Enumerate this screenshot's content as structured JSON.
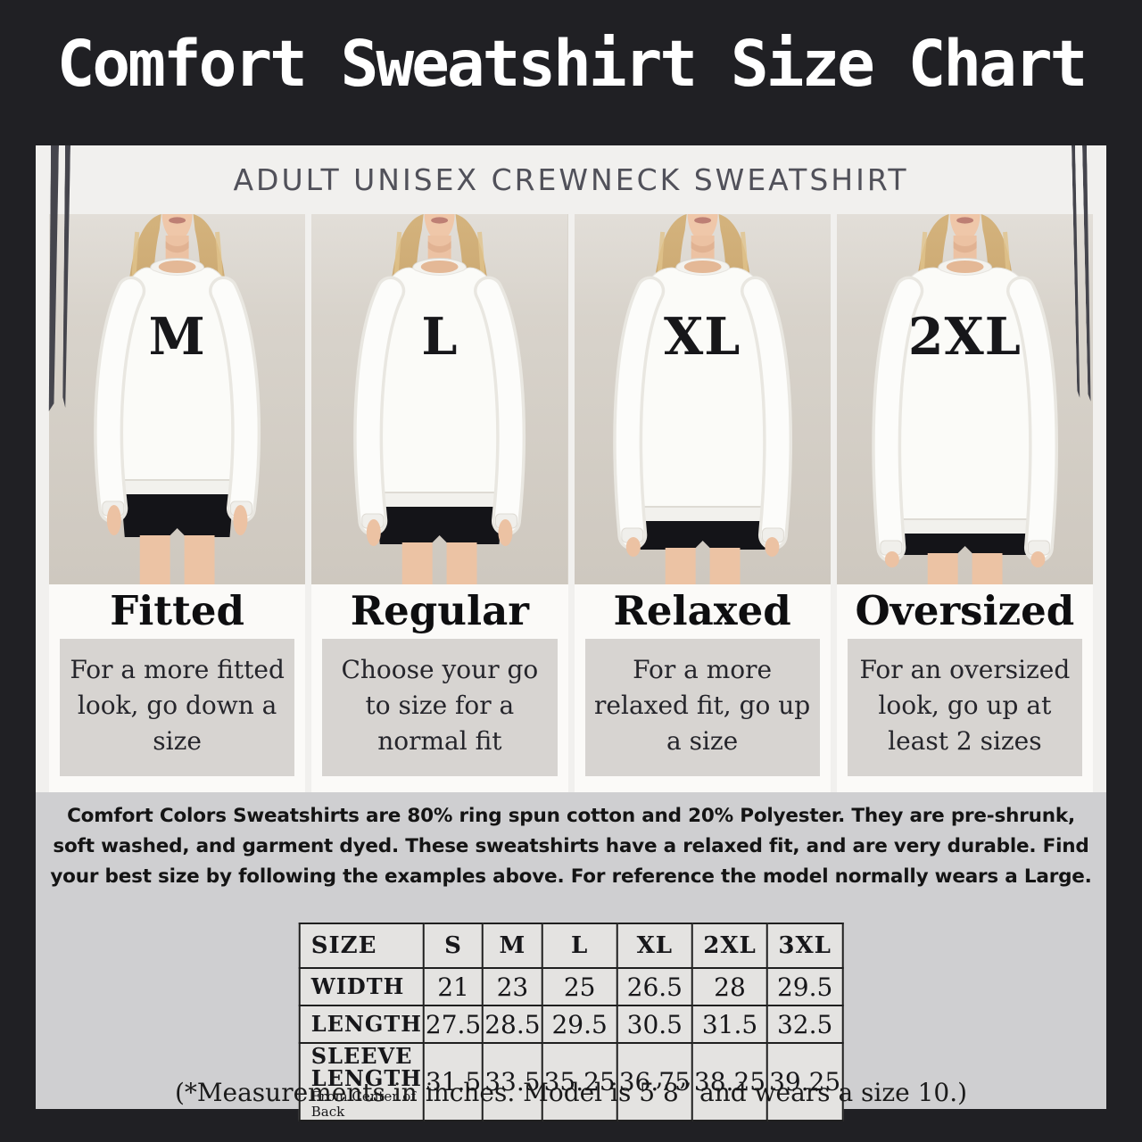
{
  "header": {
    "title": "Comfort Sweatshirt Size Chart",
    "subtitle": "Adult Unisex Crewneck Sweatshirt"
  },
  "panels": [
    {
      "size_label": "M",
      "fit_label": "Fitted",
      "fit_desc": "For a more fitted look, go down a size"
    },
    {
      "size_label": "L",
      "fit_label": "Regular",
      "fit_desc": "Choose your go to size for a normal fit"
    },
    {
      "size_label": "XL",
      "fit_label": "Relaxed",
      "fit_desc": "For a more relaxed fit, go up a size"
    },
    {
      "size_label": "2XL",
      "fit_label": "Oversized",
      "fit_desc": "For an oversized look, go up at least 2 sizes"
    }
  ],
  "description": "Comfort Colors Sweatshirts are 80% ring spun cotton and 20% Polyester. They are pre-shrunk, soft washed, and garment dyed. These sweatshirts have a relaxed fit, and are very durable. Find your best size by following the examples above. For reference the model normally wears a Large.",
  "size_table": {
    "header_row": [
      "SIZE",
      "S",
      "M",
      "L",
      "XL",
      "2XL",
      "3XL"
    ],
    "rows": [
      {
        "label": "WIDTH",
        "sublabel": "",
        "values": [
          "21",
          "23",
          "25",
          "26.5",
          "28",
          "29.5"
        ]
      },
      {
        "label": "LENGTH",
        "sublabel": "",
        "values": [
          "27.5",
          "28.5",
          "29.5",
          "30.5",
          "31.5",
          "32.5"
        ]
      },
      {
        "label": "SLEEVE LENGTH",
        "sublabel": "From Center of Back",
        "values": [
          "31.5",
          "33.5",
          "35.25",
          "36.75",
          "38.25",
          "39.25"
        ]
      }
    ]
  },
  "footnote": "(*Measurements in inches. Model is 5’8” and wears a size 10.)",
  "colors": {
    "background": "#202024",
    "card": "#f1f0ee",
    "photo_background": "#d8d3cb",
    "stripe": "#45454d",
    "fit_box": "#d7d4d1",
    "bottom_section": "#cfcfd1",
    "table_background": "#e4e3e1",
    "text_dark": "#17171a",
    "title_text": "#ffffff"
  }
}
